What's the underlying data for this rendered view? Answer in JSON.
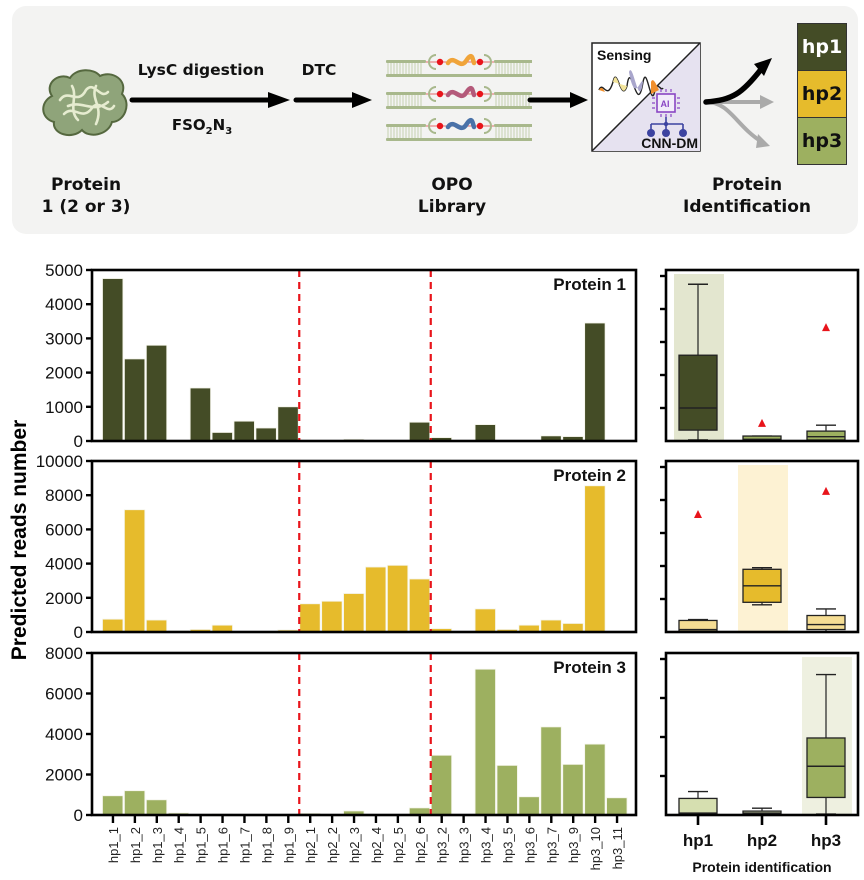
{
  "scheme": {
    "protein_label_line1": "Protein",
    "protein_label_line2": "1 (2 or 3)",
    "step1_top": "LysC digestion",
    "step1_bottom_base": "FSO",
    "step1_bottom_sub1": "2",
    "step1_bottom_mid": "N",
    "step1_bottom_sub2": "3",
    "step2_top": "DTC",
    "library_label_line1": "OPO",
    "library_label_line2": "Library",
    "sensing_label": "Sensing",
    "cnn_label": "CNN-DM",
    "ai_chip_text": "AI",
    "identification_line1": "Protein",
    "identification_line2": "Identification",
    "outputs": [
      {
        "label": "hp1",
        "color": "#444c26",
        "text_color": "#ffffff",
        "arrow": "#000000"
      },
      {
        "label": "hp2",
        "color": "#e6bb2c",
        "text_color": "#111111",
        "arrow": "#aaaaaa"
      },
      {
        "label": "hp3",
        "color": "#9db060",
        "text_color": "#111111",
        "arrow": "#aaaaaa"
      }
    ],
    "library_strand_colors": [
      "#f0a43a",
      "#b45a7a",
      "#4a72a8"
    ]
  },
  "chart_data": [
    {
      "type": "bar",
      "title": "Protein 1",
      "ylabel": "Predicted reads number",
      "ylim": [
        0,
        5000
      ],
      "yticks": [
        0,
        1000,
        2000,
        3000,
        4000,
        5000
      ],
      "color": "#444c26",
      "categories": [
        "hp1_1",
        "hp1_2",
        "hp1_3",
        "hp1_4",
        "hp1_5",
        "hp1_6",
        "hp1_7",
        "hp1_8",
        "hp1_9",
        "hp2_1",
        "hp2_2",
        "hp2_3",
        "hp2_4",
        "hp2_5",
        "hp2_6",
        "hp3_2",
        "hp3_3",
        "hp3_4",
        "hp3_5",
        "hp3_6",
        "hp3_7",
        "hp3_9",
        "hp3_10",
        "hp3_11"
      ],
      "values": [
        4750,
        2400,
        2800,
        0,
        1550,
        250,
        580,
        380,
        1000,
        20,
        0,
        50,
        0,
        0,
        550,
        100,
        0,
        480,
        0,
        0,
        150,
        130,
        3450,
        0
      ],
      "group_dividers_after": [
        "hp1_9",
        "hp2_6"
      ]
    },
    {
      "type": "bar",
      "title": "Protein 2",
      "ylabel": "Predicted reads number",
      "ylim": [
        0,
        10000
      ],
      "yticks": [
        0,
        2000,
        4000,
        6000,
        8000,
        10000
      ],
      "color": "#e6bb2c",
      "categories": [
        "hp1_1",
        "hp1_2",
        "hp1_3",
        "hp1_4",
        "hp1_5",
        "hp1_6",
        "hp1_7",
        "hp1_8",
        "hp1_9",
        "hp2_1",
        "hp2_2",
        "hp2_3",
        "hp2_4",
        "hp2_5",
        "hp2_6",
        "hp3_2",
        "hp3_3",
        "hp3_4",
        "hp3_5",
        "hp3_6",
        "hp3_7",
        "hp3_9",
        "hp3_10",
        "hp3_11"
      ],
      "values": [
        750,
        7150,
        700,
        80,
        150,
        400,
        0,
        0,
        120,
        1650,
        1800,
        2250,
        3800,
        3900,
        3100,
        200,
        0,
        1350,
        150,
        400,
        700,
        500,
        8550,
        0
      ],
      "group_dividers_after": [
        "hp1_9",
        "hp2_6"
      ]
    },
    {
      "type": "bar",
      "title": "Protein 3",
      "xlabel": "",
      "ylabel": "Predicted reads number",
      "ylim": [
        0,
        8000
      ],
      "yticks": [
        0,
        2000,
        4000,
        6000,
        8000
      ],
      "color": "#9db060",
      "categories": [
        "hp1_1",
        "hp1_2",
        "hp1_3",
        "hp1_4",
        "hp1_5",
        "hp1_6",
        "hp1_7",
        "hp1_8",
        "hp1_9",
        "hp2_1",
        "hp2_2",
        "hp2_3",
        "hp2_4",
        "hp2_5",
        "hp2_6",
        "hp3_2",
        "hp3_3",
        "hp3_4",
        "hp3_5",
        "hp3_6",
        "hp3_7",
        "hp3_9",
        "hp3_10",
        "hp3_11"
      ],
      "values": [
        950,
        1200,
        750,
        100,
        0,
        50,
        0,
        0,
        0,
        80,
        0,
        200,
        0,
        0,
        350,
        2950,
        0,
        7200,
        2450,
        900,
        4350,
        2500,
        3500,
        850
      ],
      "group_dividers_after": [
        "hp1_9",
        "hp2_6"
      ]
    },
    {
      "type": "box",
      "panel": "Protein 1",
      "ylim": [
        0,
        5000
      ],
      "categories": [
        "hp1",
        "hp2",
        "hp3"
      ],
      "highlight": "hp1",
      "highlight_color": "#e3e6cf",
      "boxes": [
        {
          "group": "hp1",
          "min": 30,
          "q1": 330,
          "median": 1000,
          "q3": 2600,
          "max": 4750,
          "outliers": [],
          "fill": "#444c26"
        },
        {
          "group": "hp2",
          "min": 0,
          "q1": 0,
          "median": 50,
          "q3": 150,
          "max": 150,
          "outliers": [
            550
          ],
          "fill": "#9db060"
        },
        {
          "group": "hp3",
          "min": 0,
          "q1": 30,
          "median": 130,
          "q3": 300,
          "max": 480,
          "outliers": [
            3450
          ],
          "fill": "#9db060"
        }
      ]
    },
    {
      "type": "box",
      "panel": "Protein 2",
      "ylim": [
        0,
        10000
      ],
      "categories": [
        "hp1",
        "hp2",
        "hp3"
      ],
      "highlight": "hp2",
      "highlight_color": "#fdf2d3",
      "boxes": [
        {
          "group": "hp1",
          "min": 0,
          "q1": 50,
          "median": 150,
          "q3": 700,
          "max": 750,
          "outliers": [
            7150
          ],
          "fill": "#f5dd94"
        },
        {
          "group": "hp2",
          "min": 1650,
          "q1": 1800,
          "median": 2800,
          "q3": 3800,
          "max": 3900,
          "outliers": [],
          "fill": "#e6bb2c"
        },
        {
          "group": "hp3",
          "min": 0,
          "q1": 150,
          "median": 450,
          "q3": 1000,
          "max": 1400,
          "outliers": [
            8550
          ],
          "fill": "#f5dd94"
        }
      ]
    },
    {
      "type": "box",
      "panel": "Protein 3",
      "ylim": [
        0,
        8000
      ],
      "categories": [
        "hp1",
        "hp2",
        "hp3"
      ],
      "highlight": "hp3",
      "highlight_color": "#eef0e0",
      "xlabel": "Protein identification",
      "boxes": [
        {
          "group": "hp1",
          "min": 0,
          "q1": 50,
          "median": 100,
          "q3": 850,
          "max": 1200,
          "outliers": [],
          "fill": "#d6dfb0"
        },
        {
          "group": "hp2",
          "min": 0,
          "q1": 50,
          "median": 100,
          "q3": 200,
          "max": 350,
          "outliers": [],
          "fill": "#d6dfb0"
        },
        {
          "group": "hp3",
          "min": 50,
          "q1": 900,
          "median": 2500,
          "q3": 3950,
          "max": 7200,
          "outliers": [],
          "fill": "#9db060"
        }
      ]
    }
  ],
  "colors": {
    "divider": "#e8141b",
    "outlier": "#e8141b",
    "axis": "#000000"
  }
}
